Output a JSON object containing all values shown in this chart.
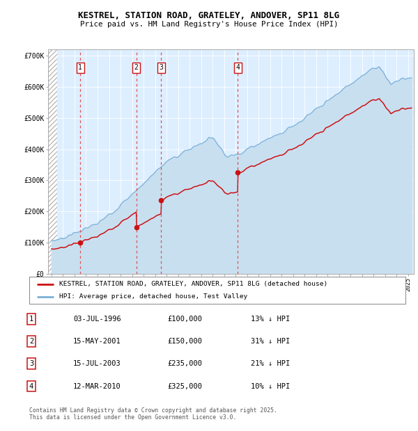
{
  "title_line1": "KESTREL, STATION ROAD, GRATELEY, ANDOVER, SP11 8LG",
  "title_line2": "Price paid vs. HM Land Registry's House Price Index (HPI)",
  "background_color": "#ffffff",
  "plot_bg_color": "#ddeeff",
  "ylim": [
    0,
    720000
  ],
  "yticks": [
    0,
    100000,
    200000,
    300000,
    400000,
    500000,
    600000,
    700000
  ],
  "ytick_labels": [
    "£0",
    "£100K",
    "£200K",
    "£300K",
    "£400K",
    "£500K",
    "£600K",
    "£700K"
  ],
  "purchases": [
    {
      "label": "1",
      "year": 1996.5,
      "price": 100000,
      "date": "03-JUL-1996",
      "pct": "13%"
    },
    {
      "label": "2",
      "year": 2001.37,
      "price": 150000,
      "date": "15-MAY-2001",
      "pct": "31%"
    },
    {
      "label": "3",
      "year": 2003.54,
      "price": 235000,
      "date": "15-JUL-2003",
      "pct": "21%"
    },
    {
      "label": "4",
      "year": 2010.19,
      "price": 325000,
      "date": "12-MAR-2010",
      "pct": "10%"
    }
  ],
  "hpi_color": "#7ab0d8",
  "price_color": "#cc1111",
  "hpi_fill_color": "#c8dff0",
  "legend_house_label": "KESTREL, STATION ROAD, GRATELEY, ANDOVER, SP11 8LG (detached house)",
  "legend_hpi_label": "HPI: Average price, detached house, Test Valley",
  "footer": "Contains HM Land Registry data © Crown copyright and database right 2025.\nThis data is licensed under the Open Government Licence v3.0.",
  "dashed_line_color": "#dd4444",
  "table_rows": [
    [
      "1",
      "03-JUL-1996",
      "£100,000",
      "13% ↓ HPI"
    ],
    [
      "2",
      "15-MAY-2001",
      "£150,000",
      "31% ↓ HPI"
    ],
    [
      "3",
      "15-JUL-2003",
      "£235,000",
      "21% ↓ HPI"
    ],
    [
      "4",
      "12-MAR-2010",
      "£325,000",
      "10% ↓ HPI"
    ]
  ],
  "xlim_left": 1993.7,
  "xlim_right": 2025.5
}
